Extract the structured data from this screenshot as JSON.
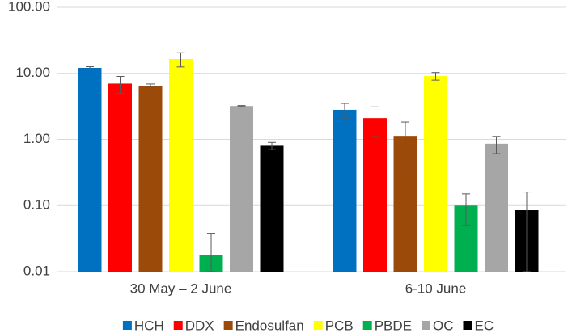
{
  "chart_data": {
    "type": "bar",
    "yscale": "log",
    "grid": true,
    "categories": [
      "30 May – 2 June",
      "6-10 June"
    ],
    "series": [
      {
        "name": "HCH",
        "color": "#0070c0",
        "values": [
          12.1,
          2.8
        ],
        "errors": [
          0.5,
          0.7
        ]
      },
      {
        "name": "DDX",
        "color": "#ff0000",
        "values": [
          7.0,
          2.1
        ],
        "errors": [
          2.0,
          1.0
        ]
      },
      {
        "name": "Endosulfan",
        "color": "#9c4a0a",
        "values": [
          6.5,
          1.13
        ],
        "errors": [
          0.4,
          0.7
        ]
      },
      {
        "name": "PCB",
        "color": "#ffff00",
        "values": [
          16.5,
          9.1
        ],
        "errors": [
          4.0,
          1.2
        ]
      },
      {
        "name": "PBDE",
        "color": "#00b050",
        "values": [
          0.018,
          0.1
        ],
        "errors": [
          0.02,
          0.05
        ]
      },
      {
        "name": "OC",
        "color": "#a6a6a6",
        "values": [
          3.2,
          0.86
        ],
        "errors": [
          0.05,
          0.25
        ]
      },
      {
        "name": "EC",
        "color": "#000000",
        "values": [
          0.8,
          0.085
        ],
        "errors": [
          0.1,
          0.075
        ]
      }
    ],
    "ylim": [
      0.01,
      100
    ],
    "yticks": [
      {
        "value": 0.01,
        "label": "0.01"
      },
      {
        "value": 0.1,
        "label": "0.10"
      },
      {
        "value": 1,
        "label": "1.00"
      },
      {
        "value": 10,
        "label": "10.00"
      },
      {
        "value": 100,
        "label": "100.00"
      }
    ],
    "legend": "bottom"
  }
}
